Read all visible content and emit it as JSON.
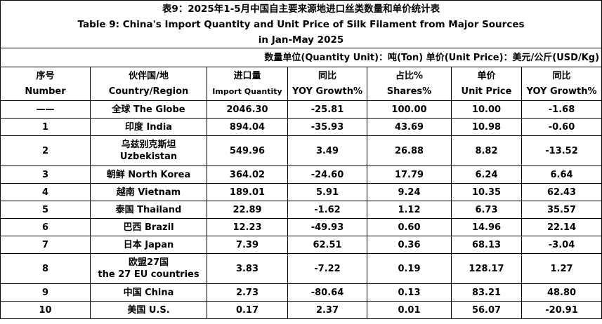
{
  "title": {
    "zh": "表9：2025年1-5月中国自主要来源地进口丝类数量和单价统计表",
    "en_line1": "Table 9: China's Import Quantity and Unit Price of Silk Filament from Major Sources",
    "en_line2": "in Jan-May 2025"
  },
  "unit_note": "数量单位(Quantity Unit)：吨(Ton)  单价(Unit Price)：美元/公斤(USD/Kg)",
  "columns": [
    {
      "zh": "序号",
      "en": "Number"
    },
    {
      "zh": "伙伴国/地",
      "en": "Country/Region"
    },
    {
      "zh": "进口量",
      "en": "Import Quantity"
    },
    {
      "zh": "同比",
      "en": "YOY Growth%"
    },
    {
      "zh": "占比%",
      "en": "Shares%"
    },
    {
      "zh": "单价",
      "en": "Unit Price"
    },
    {
      "zh": "同比",
      "en": "YOY Growth%"
    }
  ],
  "rows": [
    {
      "num": "——",
      "c1": "全球 The Globe",
      "c2": "",
      "qty": "2046.30",
      "yoy": "-25.81",
      "share": "100.00",
      "price": "10.00",
      "pyoy": "-1.68"
    },
    {
      "num": "1",
      "c1": "印度 India",
      "c2": "",
      "qty": "894.04",
      "yoy": "-35.93",
      "share": "43.69",
      "price": "10.98",
      "pyoy": "-0.60"
    },
    {
      "num": "2",
      "c1": "乌兹别克斯坦",
      "c2": "Uzbekistan",
      "qty": "549.96",
      "yoy": "3.49",
      "share": "26.88",
      "price": "8.82",
      "pyoy": "-13.52"
    },
    {
      "num": "3",
      "c1": "朝鲜  North Korea",
      "c2": "",
      "qty": "364.02",
      "yoy": "-24.60",
      "share": "17.79",
      "price": "6.24",
      "pyoy": "6.64"
    },
    {
      "num": "4",
      "c1": "越南 Vietnam",
      "c2": "",
      "qty": "189.01",
      "yoy": "5.91",
      "share": "9.24",
      "price": "10.35",
      "pyoy": "62.43"
    },
    {
      "num": "5",
      "c1": "泰国 Thailand",
      "c2": "",
      "qty": "22.89",
      "yoy": "-1.62",
      "share": "1.12",
      "price": "6.73",
      "pyoy": "35.57"
    },
    {
      "num": "6",
      "c1": "巴西 Brazil",
      "c2": "",
      "qty": "12.23",
      "yoy": "-49.93",
      "share": "0.60",
      "price": "14.96",
      "pyoy": "22.14"
    },
    {
      "num": "7",
      "c1": "日本 Japan",
      "c2": "",
      "qty": "7.39",
      "yoy": "62.51",
      "share": "0.36",
      "price": "68.13",
      "pyoy": "-3.04"
    },
    {
      "num": "8",
      "c1": "欧盟27国",
      "c2": "the 27 EU countries",
      "qty": "3.83",
      "yoy": "-7.22",
      "share": "0.19",
      "price": "128.17",
      "pyoy": "1.27"
    },
    {
      "num": "9",
      "c1": "中国 China",
      "c2": "",
      "qty": "2.73",
      "yoy": "-80.64",
      "share": "0.13",
      "price": "83.21",
      "pyoy": "48.80"
    },
    {
      "num": "10",
      "c1": "美国 U.S.",
      "c2": "",
      "qty": "0.17",
      "yoy": "2.37",
      "share": "0.01",
      "price": "56.07",
      "pyoy": "-20.91"
    }
  ]
}
